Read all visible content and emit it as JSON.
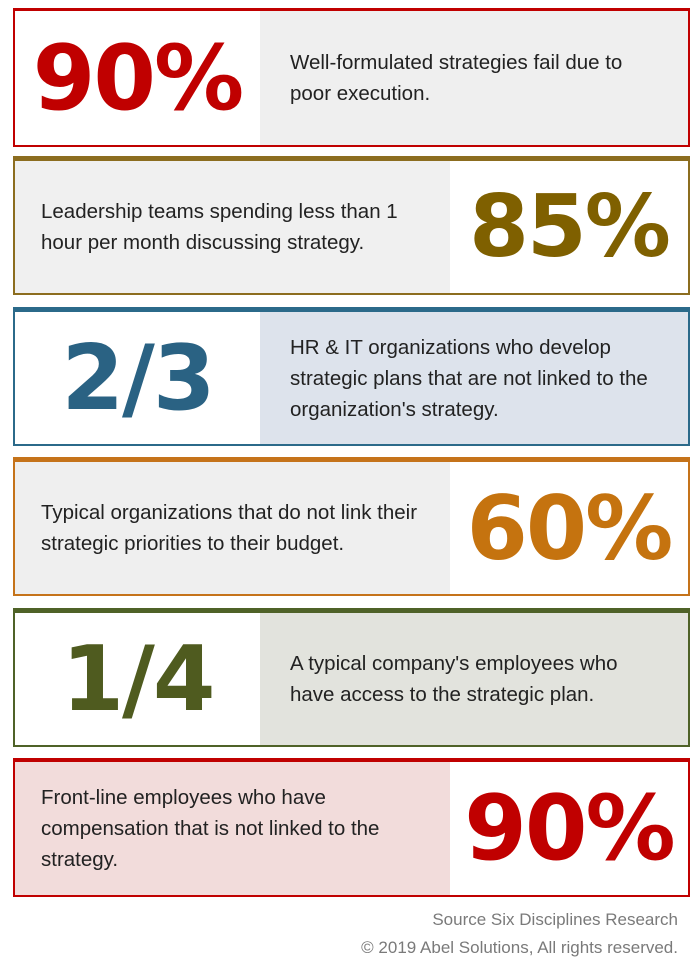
{
  "stats": [
    {
      "value": "90%",
      "text": "Well-formulated strategies fail due to poor execution.",
      "accent": "#c00000",
      "number_color": "#c00000",
      "text_bg": "#efefef"
    },
    {
      "value": "85%",
      "text": "Leadership teams spending less than 1 hour per month discussing strategy.",
      "accent": "#7f6000",
      "number_color": "#7f6000",
      "text_bg": "#f0f0f0"
    },
    {
      "value": "2/3",
      "text": "HR & IT organizations who develop strategic plans that are not linked to the organization's strategy.",
      "accent": "#1f5f7a",
      "number_color": "#2a6283",
      "text_bg": "#dde3ec"
    },
    {
      "value": "60%",
      "text": "Typical organizations that do not link their strategic priorities to their budget.",
      "accent": "#c5731a",
      "number_color": "#c5730f",
      "text_bg": "#efefef"
    },
    {
      "value": "1/4",
      "text": "A  typical company's employees who have access to the strategic plan.",
      "accent": "#4f6228",
      "number_color": "#4f5b1f",
      "text_bg": "#e2e3dd"
    },
    {
      "value": "90%",
      "text": "Front-line employees who have compensation that is not linked to the strategy.",
      "accent": "#c00000",
      "number_color": "#c00000",
      "text_bg": "#f2dcdb"
    }
  ],
  "footer": {
    "source": "Source Six Disciplines Research",
    "copyright": "© 2019 Abel Solutions, All rights reserved."
  }
}
